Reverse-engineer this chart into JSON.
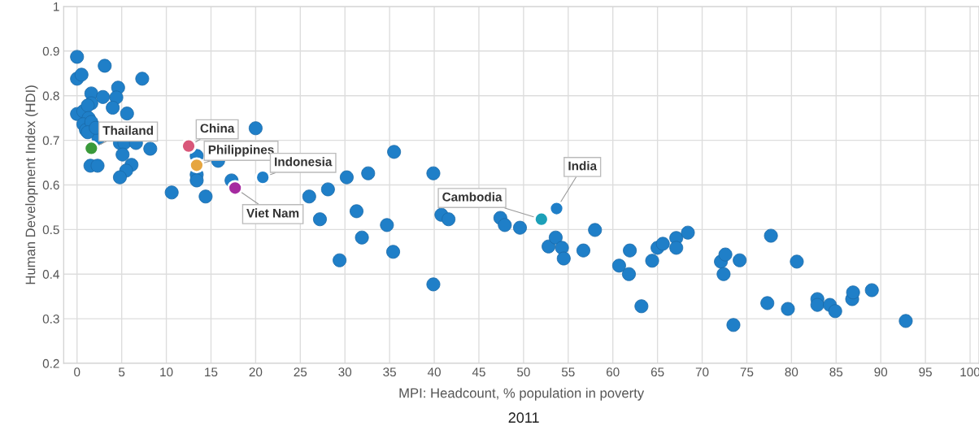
{
  "chart_data": {
    "type": "scatter",
    "xlabel": "MPI: Headcount, % population in poverty",
    "ylabel": "Human Development Index (HDI)",
    "xlim": [
      -1.5,
      101
    ],
    "ylim": [
      0.2,
      1
    ],
    "xticks": [
      0,
      5,
      10,
      15,
      20,
      25,
      30,
      35,
      40,
      45,
      50,
      55,
      60,
      65,
      70,
      75,
      80,
      85,
      90,
      95,
      100
    ],
    "yticks": [
      0.2,
      0.3,
      0.4,
      0.5,
      0.6,
      0.7,
      0.8,
      0.9,
      1
    ],
    "grid": true,
    "marker": "circle",
    "series": [
      {
        "color": "#1f7fc8",
        "x": [
          0,
          0,
          0.5,
          3.1,
          7.3,
          1.6,
          1.6,
          2.9,
          4.6,
          4.4,
          4.0,
          5.6,
          0,
          0.7,
          1.2,
          1.3,
          0.7,
          1.0,
          1.6,
          2.4,
          1.2,
          2.1,
          4.8,
          5.3,
          6.6,
          8.2,
          1.5,
          2.3,
          5.1,
          6.1,
          5.5,
          4.8,
          10.6,
          13.4,
          13.4,
          13.4,
          14.4,
          15.8,
          20.0,
          17.3,
          26.0,
          27.2,
          28.1,
          30.2,
          32.6,
          31.3,
          31.9,
          29.4,
          34.7,
          35.5,
          35.4,
          39.9,
          39.9,
          40.8,
          41.6,
          47.4,
          47.9,
          49.6,
          52.8,
          53.6,
          54.3,
          54.5,
          56.7,
          58.0,
          60.7,
          61.9,
          61.8,
          63.2,
          64.4,
          65.0,
          65.6,
          67.1,
          67.1,
          68.4,
          72.1,
          72.6,
          72.4,
          73.5,
          74.2,
          77.3,
          77.7,
          79.6,
          80.6,
          82.9,
          82.9,
          84.3,
          84.9,
          86.8,
          86.9,
          89.0,
          92.8
        ],
        "values": [
          0.887,
          0.838,
          0.847,
          0.867,
          0.838,
          0.805,
          0.783,
          0.797,
          0.818,
          0.796,
          0.773,
          0.76,
          0.759,
          0.765,
          0.778,
          0.75,
          0.736,
          0.723,
          0.741,
          0.705,
          0.718,
          0.728,
          0.694,
          0.694,
          0.694,
          0.681,
          0.643,
          0.643,
          0.668,
          0.645,
          0.632,
          0.617,
          0.583,
          0.665,
          0.623,
          0.61,
          0.574,
          0.654,
          0.727,
          0.61,
          0.574,
          0.523,
          0.59,
          0.617,
          0.626,
          0.541,
          0.482,
          0.431,
          0.51,
          0.674,
          0.45,
          0.626,
          0.377,
          0.533,
          0.523,
          0.526,
          0.51,
          0.504,
          0.462,
          0.482,
          0.459,
          0.435,
          0.453,
          0.499,
          0.419,
          0.453,
          0.4,
          0.328,
          0.43,
          0.459,
          0.468,
          0.481,
          0.459,
          0.493,
          0.428,
          0.444,
          0.4,
          0.286,
          0.431,
          0.335,
          0.486,
          0.322,
          0.428,
          0.344,
          0.331,
          0.331,
          0.317,
          0.344,
          0.359,
          0.364,
          0.295
        ]
      },
      {
        "x": [
          1.6,
          12.5,
          13.4,
          20.8,
          17.7,
          53.7,
          52.0
        ],
        "values": [
          0.682,
          0.687,
          0.644,
          0.617,
          0.593,
          0.547,
          0.523
        ],
        "colors": [
          "#3a9a3a",
          "#d9577a",
          "#e6a640",
          "#1f7fc8",
          "#a52aa0",
          "#1f7fc8",
          "#1ca0b8"
        ]
      }
    ],
    "annotations": [
      {
        "text": "Thailand",
        "x": 1.6,
        "y": 0.682
      },
      {
        "text": "China",
        "x": 12.5,
        "y": 0.687
      },
      {
        "text": "Philippines",
        "x": 13.4,
        "y": 0.644
      },
      {
        "text": "Indonesia",
        "x": 20.8,
        "y": 0.617
      },
      {
        "text": "Viet Nam",
        "x": 17.7,
        "y": 0.593
      },
      {
        "text": "India",
        "x": 53.7,
        "y": 0.547
      },
      {
        "text": "Cambodia",
        "x": 52.0,
        "y": 0.523
      },
      "2011"
    ]
  }
}
